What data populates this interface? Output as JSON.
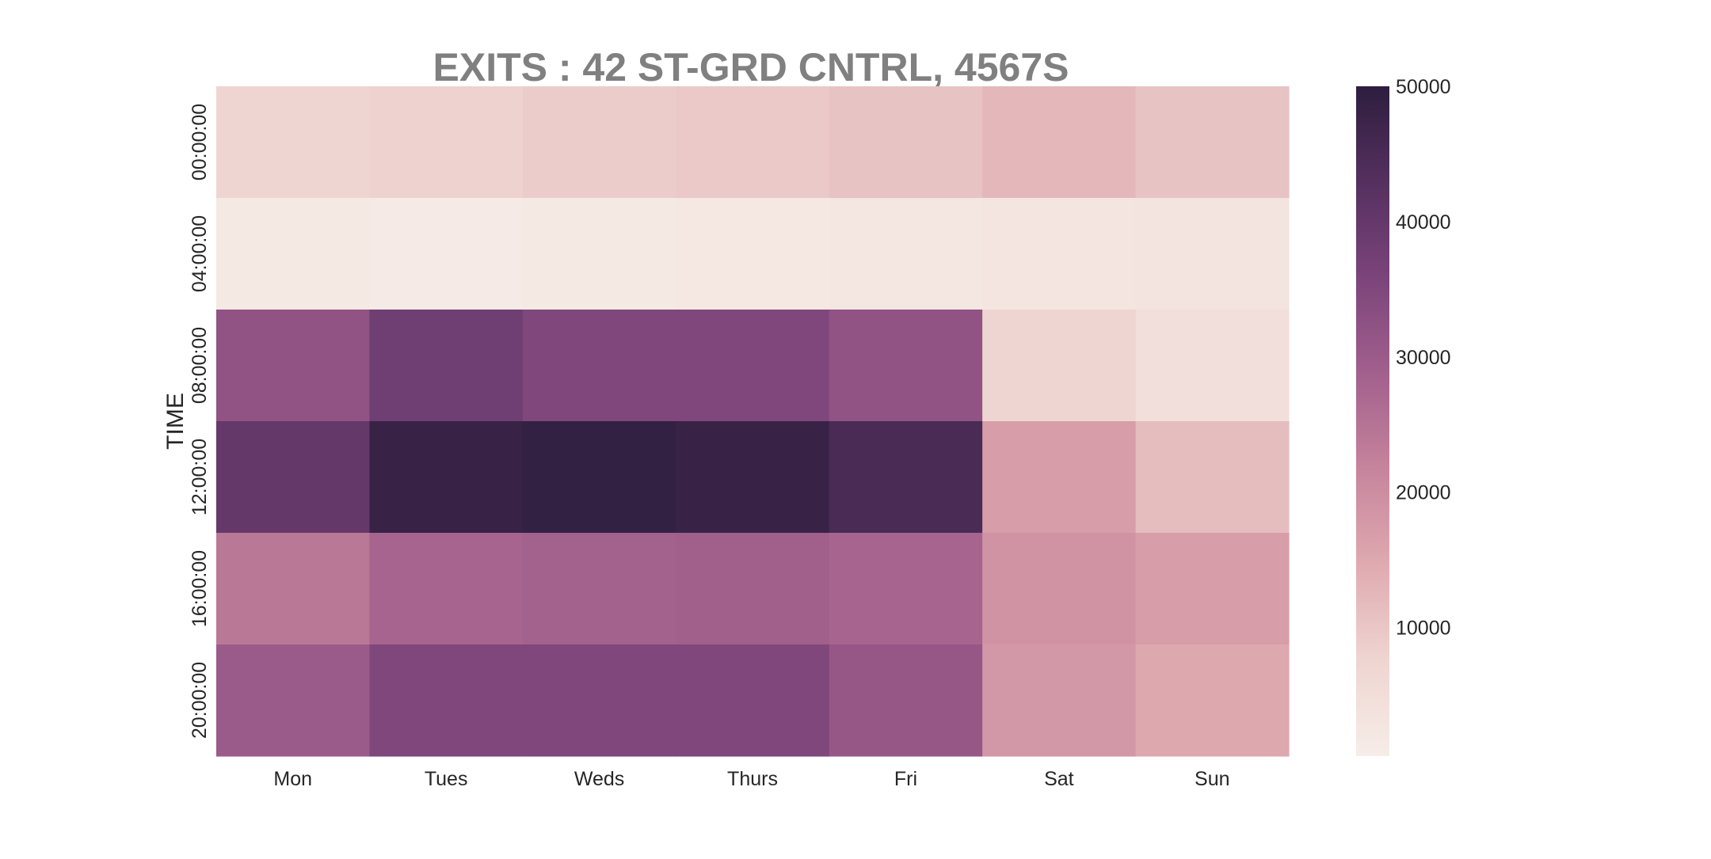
{
  "chart_data": {
    "type": "heatmap",
    "title": "EXITS : 42 ST-GRD CNTRL, 4567S",
    "xlabel": "",
    "ylabel": "TIME",
    "x_categories": [
      "Mon",
      "Tues",
      "Weds",
      "Thurs",
      "Fri",
      "Sat",
      "Sun"
    ],
    "y_categories": [
      "00:00:00",
      "04:00:00",
      "08:00:00",
      "12:00:00",
      "16:00:00",
      "20:00:00"
    ],
    "values": [
      [
        7500,
        8000,
        9000,
        9500,
        10500,
        12500,
        10500
      ],
      [
        1800,
        1500,
        1700,
        2000,
        2200,
        3000,
        3200
      ],
      [
        32000,
        38000,
        35000,
        35000,
        32000,
        7500,
        4800
      ],
      [
        40000,
        48000,
        49000,
        48000,
        45000,
        17000,
        11500
      ],
      [
        24000,
        28000,
        28500,
        29000,
        28000,
        19000,
        17000
      ],
      [
        30000,
        35000,
        35000,
        35000,
        31000,
        18000,
        15000
      ]
    ],
    "colorbar": {
      "min": 500,
      "max": 50000,
      "ticks": [
        10000,
        20000,
        30000,
        40000,
        50000
      ],
      "tick_labels": [
        "10000",
        "20000",
        "30000",
        "40000",
        "50000"
      ]
    },
    "colormap_stops": [
      "#f6ede8",
      "#efd5d1",
      "#dfaab0",
      "#c6849c",
      "#a2608d",
      "#7b447a",
      "#55305f",
      "#2d1e3e"
    ],
    "grid": false
  }
}
